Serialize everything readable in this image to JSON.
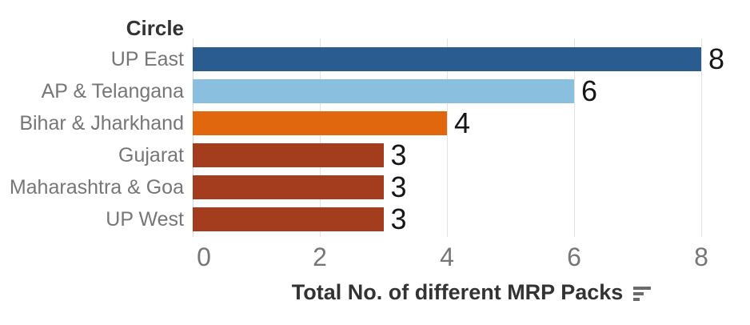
{
  "chart_data": {
    "type": "bar",
    "orientation": "horizontal",
    "column_header": "Circle",
    "categories": [
      "UP East",
      "AP & Telangana",
      "Bihar & Jharkhand",
      "Gujarat",
      "Maharashtra & Goa",
      "UP West"
    ],
    "values": [
      8,
      6,
      4,
      3,
      3,
      3
    ],
    "value_labels": [
      "8",
      "6",
      "4",
      "3",
      "3",
      "3"
    ],
    "bar_colors": [
      "#2a5c8f",
      "#8bbfdf",
      "#e0670e",
      "#a33d1d",
      "#a33d1d",
      "#a33d1d"
    ],
    "xlabel": "Total No. of different MRP Packs",
    "x_ticks": [
      0,
      2,
      4,
      6,
      8
    ],
    "xlim": [
      0,
      8
    ],
    "grid": true,
    "legend": "none",
    "sort_indicator": "descending"
  },
  "colors": {
    "grid": "#e2e2e2",
    "axis_line": "#d8d8d8",
    "category_label": "#767676",
    "tick_label": "#767676",
    "header": "#333333",
    "axis_title": "#333333",
    "value_label": "#161616",
    "sort_icon": "#6b6b6b",
    "background": "#ffffff"
  }
}
